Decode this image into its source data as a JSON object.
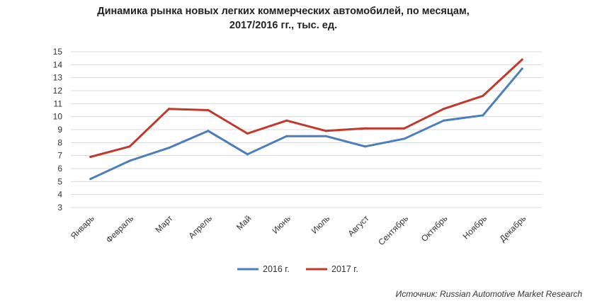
{
  "chart_data": {
    "type": "line",
    "title_line1": "Динамика рынка новых легких коммерческих автомобилей, по месяцам,",
    "title_line2": "2017/2016 гг., тыс. ед.",
    "categories": [
      "Январь",
      "Февраль",
      "Март",
      "Апрель",
      "Май",
      "Июнь",
      "Июль",
      "Август",
      "Сентябрь",
      "Октябрь",
      "Ноябрь",
      "Декабрь"
    ],
    "series": [
      {
        "name": "2016 г.",
        "color": "#4a7ebf",
        "values": [
          5.2,
          6.6,
          7.6,
          8.9,
          7.1,
          8.5,
          8.5,
          7.7,
          8.3,
          9.7,
          10.1,
          13.7
        ]
      },
      {
        "name": "2017 г.",
        "color": "#c0392b",
        "values": [
          6.9,
          7.7,
          10.6,
          10.5,
          8.7,
          9.7,
          8.9,
          9.1,
          9.1,
          10.6,
          11.6,
          14.4
        ]
      }
    ],
    "ylim": [
      3,
      15
    ],
    "yticks": [
      3,
      4,
      5,
      6,
      7,
      8,
      9,
      10,
      11,
      12,
      13,
      14,
      15
    ],
    "grid": true,
    "legend_position": "bottom"
  },
  "source": "Источник: Russian Automotive Market Research"
}
